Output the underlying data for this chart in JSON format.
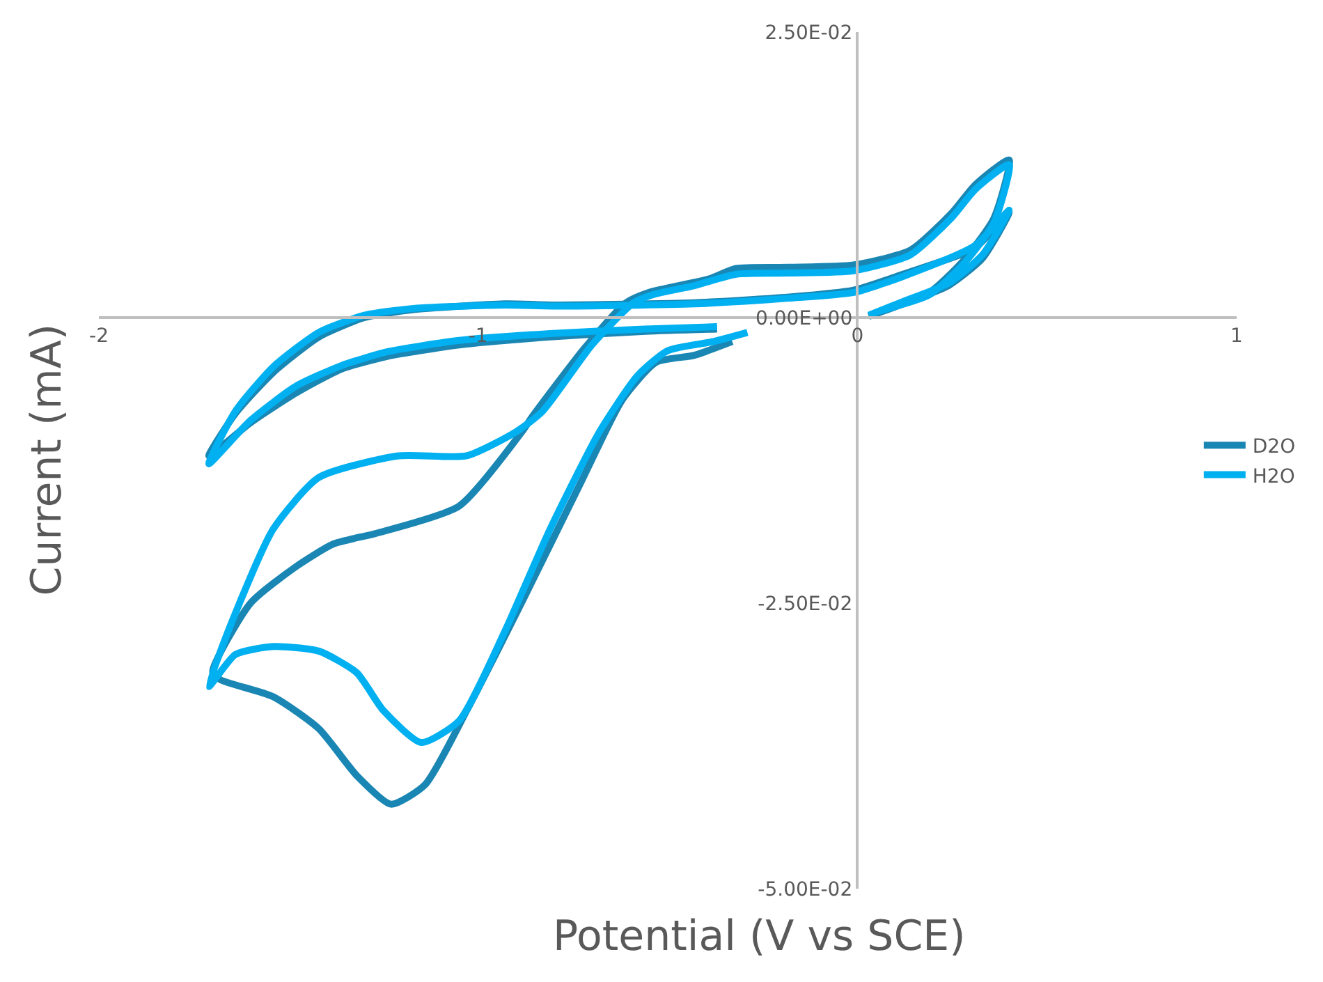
{
  "chart_data": {
    "type": "line",
    "xlabel": "Potential (V vs SCE)",
    "ylabel": "Current (mA)",
    "xlim": [
      -2,
      1
    ],
    "xticks": [
      -2,
      -1,
      0,
      1
    ],
    "ylim": [
      -0.05,
      0.025
    ],
    "yticks": [
      {
        "value": -0.05,
        "label": "-5.00E-02"
      },
      {
        "value": -0.025,
        "label": "-2.50E-02"
      },
      {
        "value": 0,
        "label": "0.00E+00"
      },
      {
        "value": 0.025,
        "label": "2.50E-02"
      }
    ],
    "grid": false,
    "legend": "right",
    "marker": "none",
    "line_style": "solid",
    "series": [
      {
        "name": "D2O",
        "color": "#1a86b3",
        "x": [
          0.03,
          0.12,
          0.24,
          0.33,
          0.4,
          0.31,
          0.12,
          -0.01,
          -0.18,
          -0.43,
          -0.79,
          -0.93,
          -1.17,
          -1.3,
          -1.42,
          -1.54,
          -1.64,
          -1.71,
          -1.6,
          -1.48,
          -1.36,
          -1.24,
          -1.05,
          -0.81,
          -0.56,
          -0.37,
          null,
          0.06,
          0.19,
          0.28,
          0.36,
          0.4,
          0.31,
          0.25,
          0.14,
          -0.01,
          -0.18,
          -0.32,
          -0.39,
          -0.55,
          -0.61,
          -0.72,
          -0.86,
          -0.88,
          -1.05,
          -1.27,
          -1.38,
          -1.48,
          -1.6,
          -1.7,
          -1.68,
          -1.54,
          -1.42,
          -1.32,
          -1.23,
          -1.14,
          -1.03,
          -0.88,
          -0.73,
          -0.62,
          -0.53,
          -0.43,
          -0.33
        ],
        "values": [
          0.0001,
          0.0012,
          0.0028,
          0.0052,
          0.0092,
          0.0061,
          0.0038,
          0.0024,
          0.0018,
          0.0013,
          0.0011,
          0.0012,
          0.0007,
          0.0,
          -0.0017,
          -0.0048,
          -0.0084,
          -0.0121,
          -0.0092,
          -0.0066,
          -0.0045,
          -0.0034,
          -0.0024,
          -0.0017,
          -0.0012,
          -0.001,
          null,
          0.0005,
          0.0022,
          0.005,
          0.0087,
          0.0138,
          0.0116,
          0.0092,
          0.0059,
          0.0046,
          0.0044,
          0.0043,
          0.0034,
          0.0022,
          0.0013,
          -0.0027,
          -0.0088,
          -0.0098,
          -0.0165,
          -0.0189,
          -0.0198,
          -0.0218,
          -0.025,
          -0.031,
          -0.0317,
          -0.0332,
          -0.036,
          -0.0401,
          -0.0426,
          -0.0409,
          -0.0344,
          -0.0246,
          -0.0145,
          -0.0072,
          -0.0039,
          -0.0033,
          -0.0021
        ]
      },
      {
        "name": "H2O",
        "color": "#00b0f0",
        "x": [
          0.03,
          0.12,
          0.24,
          0.33,
          0.4,
          0.31,
          0.12,
          -0.01,
          -0.18,
          -0.43,
          -0.79,
          -0.93,
          -1.17,
          -1.3,
          -1.42,
          -1.54,
          -1.64,
          -1.71,
          -1.6,
          -1.48,
          -1.36,
          -1.24,
          -1.05,
          -0.81,
          -0.56,
          -0.37,
          null,
          0.06,
          0.19,
          0.28,
          0.36,
          0.4,
          0.31,
          0.25,
          0.14,
          -0.01,
          -0.18,
          -0.32,
          -0.43,
          -0.54,
          -0.59,
          -0.7,
          -0.83,
          -0.9,
          -1.03,
          -1.21,
          -1.42,
          -1.54,
          -1.65,
          -1.71,
          -1.64,
          -1.54,
          -1.42,
          -1.32,
          -1.25,
          -1.15,
          -1.05,
          -0.93,
          -0.81,
          -0.68,
          -0.58,
          -0.5,
          -0.38,
          -0.29
        ],
        "values": [
          0.0002,
          0.0014,
          0.003,
          0.0055,
          0.0094,
          0.0063,
          0.0036,
          0.0022,
          0.0017,
          0.0012,
          0.001,
          0.0011,
          0.0008,
          0.0002,
          -0.0013,
          -0.0043,
          -0.0082,
          -0.0128,
          -0.009,
          -0.006,
          -0.0042,
          -0.003,
          -0.002,
          -0.0014,
          -0.001,
          -0.0008,
          null,
          0.0006,
          0.002,
          0.0047,
          0.0083,
          0.0134,
          0.0112,
          0.0088,
          0.0055,
          0.0041,
          0.0039,
          0.0038,
          0.0028,
          0.002,
          0.0013,
          -0.0024,
          -0.0082,
          -0.01,
          -0.0121,
          -0.0121,
          -0.014,
          -0.0185,
          -0.0267,
          -0.0323,
          -0.0295,
          -0.0288,
          -0.0292,
          -0.0311,
          -0.0344,
          -0.0372,
          -0.0353,
          -0.0275,
          -0.0185,
          -0.01,
          -0.0051,
          -0.0029,
          -0.0021,
          -0.0013
        ]
      }
    ]
  }
}
